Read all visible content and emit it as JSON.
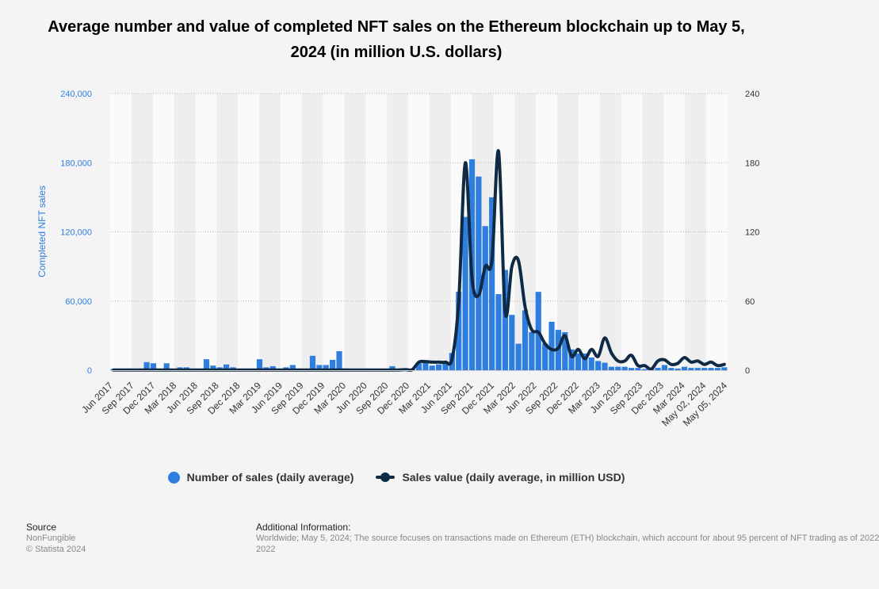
{
  "title": "Average number and value of completed NFT sales on the Ethereum blockchain up to May 5, 2024 (in million U.S. dollars)",
  "legend": {
    "sales_label": "Number of sales (daily average)",
    "value_label": "Sales value (daily average, in million USD)"
  },
  "footer": {
    "source_heading": "Source",
    "source_name": "NonFungible",
    "copyright": "© Statista 2024",
    "info_heading": "Additional Information:",
    "info_text": "Worldwide; May 5, 2024; The source focuses on transactions made on Ethereum (ETH) blockchain, which account for about 95 percent of NFT trading as of 2022",
    "info_text_line2": "2022"
  },
  "colors": {
    "bars": "#2e7ee0",
    "line": "#0f2a44",
    "axis_text_left": "#2e7ee0",
    "axis_text_right": "#333333"
  },
  "chart_data": {
    "type": "bar",
    "title": "Average number and value of completed NFT sales on the Ethereum blockchain up to May 5, 2024 (in million U.S. dollars)",
    "ylabel": "Completed NFT sales",
    "ylabel_right": "",
    "ylim": [
      0,
      240000
    ],
    "ylim_right": [
      0,
      240
    ],
    "y_ticks": [
      "0",
      "60,000",
      "120,000",
      "180,000",
      "240,000"
    ],
    "y_ticks_right": [
      "0",
      "60",
      "120",
      "180",
      "240"
    ],
    "grid": true,
    "legend_position": "bottom",
    "x_tick_labels": [
      "Jun 2017",
      "Sep 2017",
      "Dec 2017",
      "Mar 2018",
      "Jun 2018",
      "Sep 2018",
      "Dec 2018",
      "Mar 2019",
      "Jun 2019",
      "Sep 2019",
      "Dec 2019",
      "Mar 2020",
      "Jun 2020",
      "Sep 2020",
      "Dec 2020",
      "Mar 2021",
      "Jun 2021",
      "Sep 2021",
      "Dec 2021",
      "Mar 2022",
      "Jun 2022",
      "Sep 2022",
      "Dec 2022",
      "Mar 2023",
      "Jun 2023",
      "Sep 2023",
      "Dec 2023",
      "Mar 2024",
      "May 02, 2024",
      "May 05, 2024"
    ],
    "series": [
      {
        "name": "Number of sales (daily average)",
        "axis": "left",
        "kind": "bar",
        "values": [
          1000,
          1000,
          1000,
          1000,
          1000,
          7000,
          6000,
          1000,
          6000,
          1000,
          2500,
          2500,
          1000,
          1000,
          9500,
          4000,
          2500,
          5000,
          2500,
          1000,
          1000,
          1000,
          9500,
          2500,
          3500,
          1000,
          2500,
          4500,
          1000,
          1000,
          12500,
          4500,
          4500,
          9000,
          16500,
          1500,
          1000,
          1000,
          1000,
          1000,
          1000,
          1000,
          3500,
          1000,
          1000,
          1000,
          6000,
          7000,
          4000,
          5000,
          6000,
          15000,
          68000,
          133000,
          183000,
          168000,
          125000,
          150000,
          66000,
          87000,
          48000,
          23000,
          52000,
          33000,
          68000,
          23000,
          42000,
          35000,
          33000,
          18000,
          14500,
          14500,
          11000,
          8000,
          6500,
          3000,
          3000,
          3000,
          2000,
          2000,
          1000,
          1000,
          2000,
          4500,
          2000,
          1500,
          3000,
          2000,
          2000,
          2000,
          2000,
          2000,
          2500
        ]
      },
      {
        "name": "Sales value (daily average, in million USD)",
        "axis": "right",
        "kind": "line",
        "values": [
          0.2,
          0.2,
          0.2,
          0.2,
          0.2,
          0.2,
          0.2,
          0.2,
          0.2,
          0.2,
          0.2,
          0.2,
          0.2,
          0.2,
          0.2,
          0.2,
          0.2,
          0.2,
          0.2,
          0.2,
          0.2,
          0.2,
          0.2,
          0.2,
          0.2,
          0.2,
          0.2,
          0.2,
          0.2,
          0.2,
          0.2,
          0.2,
          0.2,
          0.2,
          0.2,
          0.2,
          0.2,
          0.2,
          0.2,
          0.2,
          0.2,
          0.2,
          0.2,
          0.2,
          0.5,
          0.5,
          7,
          7.5,
          7,
          7,
          7,
          10,
          60,
          180,
          80,
          65,
          90,
          95,
          190,
          50,
          90,
          95,
          55,
          35,
          33,
          23,
          18,
          19,
          30,
          12,
          18,
          10,
          18,
          12,
          28,
          15,
          8,
          8,
          13,
          4,
          4,
          1,
          8,
          9,
          5,
          6,
          11,
          7,
          8,
          5,
          7,
          4,
          5
        ]
      }
    ]
  }
}
